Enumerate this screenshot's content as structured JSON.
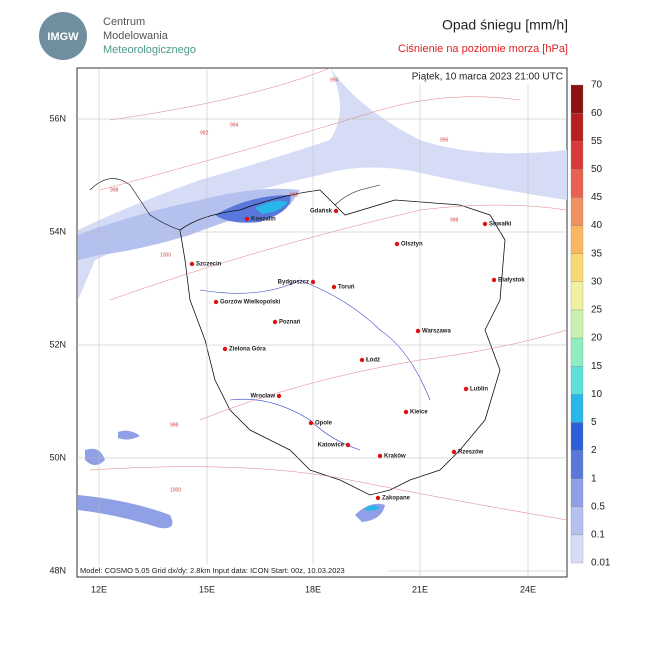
{
  "header": {
    "logo": "IMGW",
    "org": [
      "Centrum",
      "Modelowania",
      "Meteorologicznego"
    ],
    "title": "Opad śniegu [mm/h]",
    "subtitle": "Ciśnienie na poziomie morza [hPa]"
  },
  "map": {
    "date": "Piątek, 10 marca 2023 21:00 UTC",
    "lat_labels": [
      "56N",
      "54N",
      "52N",
      "50N",
      "48N"
    ],
    "lon_labels": [
      "12E",
      "15E",
      "18E",
      "21E",
      "24E"
    ],
    "cities": [
      "Koszalin",
      "Gdańsk",
      "Suwałki",
      "Olsztyn",
      "Szczecin",
      "Białystok",
      "Bydgoszcz",
      "Toruń",
      "Gorzów Wielkopolski",
      "Poznań",
      "Warszawa",
      "Zielona Góra",
      "Łódź",
      "Lublin",
      "Wrocław",
      "Kielce",
      "Opole",
      "Katowice",
      "Rzeszów",
      "Kraków",
      "Zakopane"
    ],
    "isobar_labels": [
      "994",
      "992",
      "994",
      "996",
      "998",
      "1000",
      "996",
      "998",
      "998",
      "1000"
    ],
    "footer": "Model: COSMO 5.05  Grid dx/dy: 2.8km  Input data: ICON  Start: 00z, 10.03.2023"
  },
  "colorbar": {
    "levels": [
      0.01,
      0.1,
      0.5,
      1,
      2,
      5,
      10,
      15,
      20,
      25,
      30,
      35,
      40,
      45,
      50,
      55,
      60,
      70
    ],
    "colors": [
      "#d6dcf5",
      "#b4c0ee",
      "#8fa0e6",
      "#5a78dc",
      "#2f5fd8",
      "#29b6e8",
      "#5ee0d8",
      "#8feec0",
      "#c8f0b0",
      "#f0f0a0",
      "#f8d870",
      "#f8b860",
      "#f09060",
      "#e86050",
      "#d83838",
      "#b82020",
      "#8c1010"
    ]
  }
}
